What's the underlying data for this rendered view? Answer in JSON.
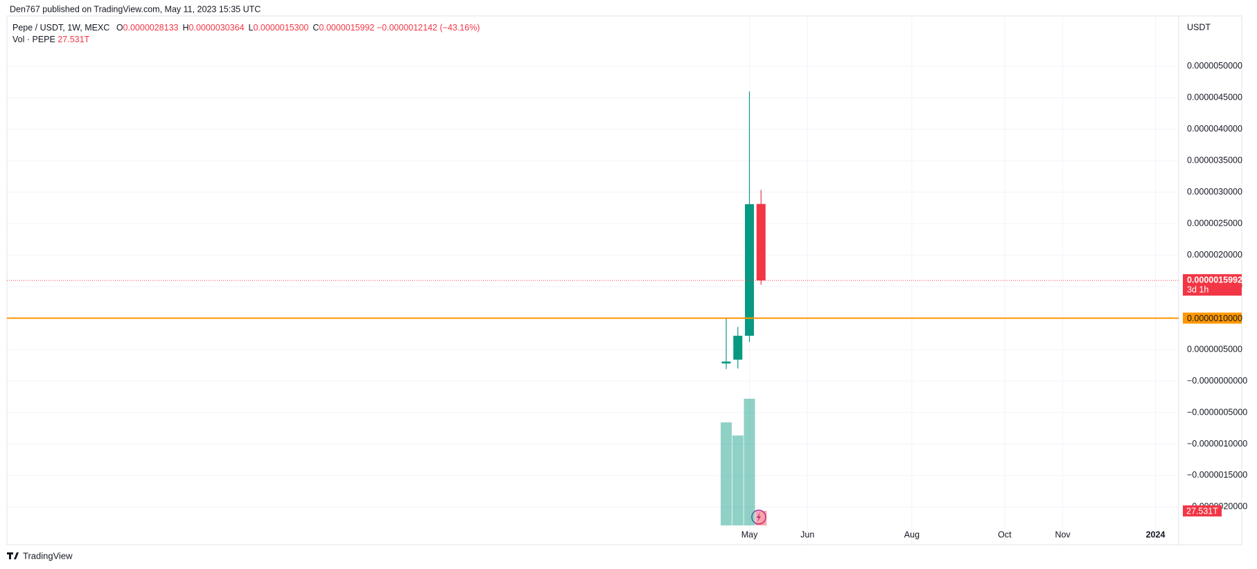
{
  "header": "Den767 published on TradingView.com, May 11, 2023 15:35 UTC",
  "footer": "TradingView",
  "chart_data": {
    "type": "candlestick",
    "title": "Pepe / USDT, 1W, MEXC",
    "legend_keys": [
      "O",
      "H",
      "L",
      "C"
    ],
    "ohlc_labels": [
      "0.0000028133",
      "0.0000030364",
      "0.0000015300",
      "0.0000015992"
    ],
    "change_label": "−0.0000012142 (−43.16%)",
    "volume_title": "Vol · PEPE",
    "volume_label": "27.531T",
    "currency": "USDT",
    "categories": [
      null,
      null,
      null,
      null
    ],
    "open": [
      2.8e-07,
      3.4e-07,
      7.2e-07,
      2.8133e-06
    ],
    "high": [
      1e-06,
      8.6e-07,
      4.6e-06,
      3.0364e-06
    ],
    "low": [
      1.9e-07,
      2e-07,
      6.2e-07,
      1.53e-06
    ],
    "close": [
      3.1e-07,
      7.2e-07,
      2.81e-06,
      1.5992e-06
    ],
    "volume": [
      196,
      171,
      241,
      27.531
    ],
    "up_color": "#089981",
    "down_color": "#f23645",
    "ylim": [
      -2.6e-06,
      5.8e-06
    ],
    "yticks": [
      {
        "value": 5e-06,
        "label": "0.0000050000"
      },
      {
        "value": 4.5e-06,
        "label": "0.0000045000"
      },
      {
        "value": 4e-06,
        "label": "0.0000040000"
      },
      {
        "value": 3.5e-06,
        "label": "0.0000035000"
      },
      {
        "value": 3e-06,
        "label": "0.0000030000"
      },
      {
        "value": 2.5e-06,
        "label": "0.0000025000"
      },
      {
        "value": 2e-06,
        "label": "0.0000020000"
      },
      {
        "value": 1.5e-06,
        "label": "0.0000015000"
      },
      {
        "value": 1e-06,
        "label": "0.0000010000"
      },
      {
        "value": 5e-07,
        "label": "0.0000005000"
      },
      {
        "value": 0,
        "label": "−0.0000000000"
      },
      {
        "value": -5e-07,
        "label": "−0.0000005000"
      },
      {
        "value": -1e-06,
        "label": "−0.0000010000"
      },
      {
        "value": -1.5e-06,
        "label": "−0.0000015000"
      },
      {
        "value": -2e-06,
        "label": "−0.0000020000"
      }
    ],
    "xlim": [
      -62,
      39
    ],
    "xticks": [
      {
        "value": 2,
        "label": "May"
      },
      {
        "value": 7,
        "label": "Jun"
      },
      {
        "value": 16,
        "label": "Aug"
      },
      {
        "value": 24,
        "label": "Oct"
      },
      {
        "value": 29,
        "label": "Nov"
      },
      {
        "value": 37,
        "label": "2024"
      }
    ],
    "grid": true,
    "hline": {
      "value": 1e-06,
      "label": "0.0000010000",
      "color": "#ff9800"
    },
    "countdown": "3d 1h"
  }
}
